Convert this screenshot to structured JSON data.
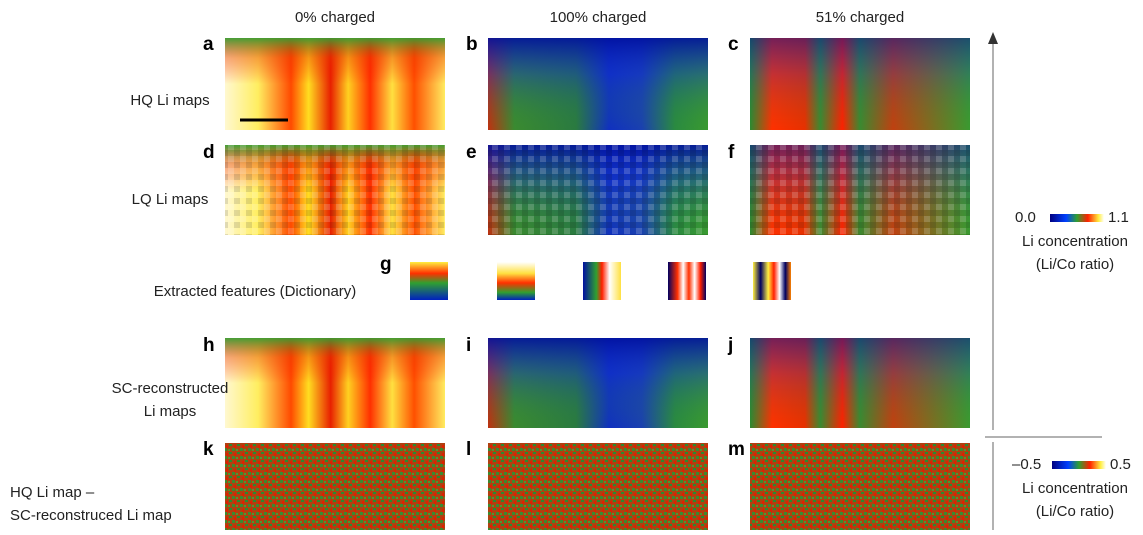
{
  "columns": [
    "0% charged",
    "100% charged",
    "51% charged"
  ],
  "panel_letters": [
    "a",
    "b",
    "c",
    "d",
    "e",
    "f",
    "g",
    "h",
    "i",
    "j",
    "k",
    "l",
    "m"
  ],
  "rows": {
    "hq": "HQ Li maps",
    "lq": "LQ Li maps",
    "features": "Extracted features (Dictionary)",
    "sc": [
      "SC-reconstructed",
      "Li maps"
    ],
    "diff": [
      "HQ Li map –",
      "SC-reconstruced Li map"
    ]
  },
  "colorbars": [
    {
      "min": "0.0",
      "max": "1.1",
      "label": "Li concentration",
      "unit": "(Li/Co ratio)"
    },
    {
      "min": "–0.5",
      "max": "0.5",
      "label": "Li concentration",
      "unit": "(Li/Co ratio)"
    }
  ]
}
